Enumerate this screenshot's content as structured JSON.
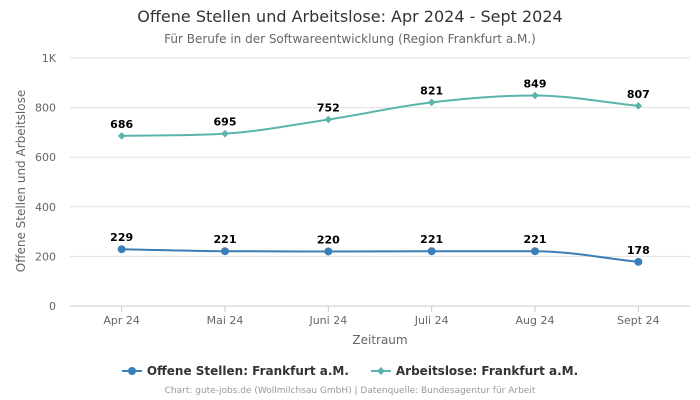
{
  "chart_data": {
    "type": "line",
    "title": "Offene Stellen und Arbeitslose: Apr 2024 - Sept 2024",
    "subtitle": "Für Berufe in der Softwareentwicklung (Region Frankfurt a.M.)",
    "xlabel": "Zeitraum",
    "ylabel": "Offene Stellen und Arbeitslose",
    "categories": [
      "Apr 24",
      "Mai 24",
      "Juni 24",
      "Juli 24",
      "Aug 24",
      "Sept 24"
    ],
    "yticks": [
      0,
      200,
      400,
      600,
      800,
      1000
    ],
    "ytick_labels": [
      "0",
      "200",
      "400",
      "600",
      "800",
      "1K"
    ],
    "ylim": [
      0,
      1000
    ],
    "grid": true,
    "legend_position": "bottom",
    "series": [
      {
        "name": "Offene Stellen: Frankfurt a.M.",
        "color": "#3a7fb8",
        "marker": "circle",
        "values": [
          229,
          221,
          220,
          221,
          221,
          178
        ]
      },
      {
        "name": "Arbeitslose: Frankfurt a.M.",
        "color": "#5ab4ac",
        "marker": "diamond",
        "values": [
          686,
          695,
          752,
          821,
          849,
          807
        ]
      }
    ]
  },
  "credits": "Chart: gute-jobs.de (Wollmilchsau GmbH) | Datenquelle: Bundesagentur für Arbeit"
}
